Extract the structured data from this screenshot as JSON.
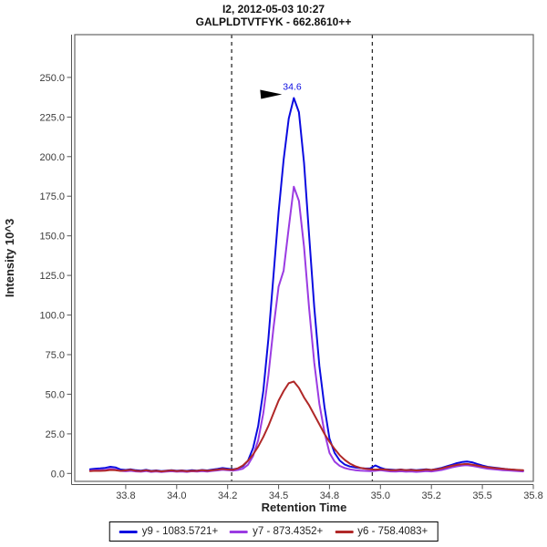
{
  "window": {
    "title_line1": "I2, 2012-05-03 10:27",
    "title_line2": "GALPLDTVTFYK - 662.8610++"
  },
  "chart_data": {
    "type": "line",
    "title": "I2, 2012-05-03 10:27",
    "subtitle": "GALPLDTVTFYK - 662.8610++",
    "xlabel": "Retention Time",
    "ylabel": "Intensity 10^3",
    "xlim": [
      33.5,
      35.75
    ],
    "ylim": [
      -5,
      277
    ],
    "grid": false,
    "legend_position": "bottom",
    "x_ticks": [
      {
        "value": 33.75,
        "label": "33.8"
      },
      {
        "value": 34.0,
        "label": "34.0"
      },
      {
        "value": 34.25,
        "label": "34.2"
      },
      {
        "value": 34.5,
        "label": "34.5"
      },
      {
        "value": 34.75,
        "label": "34.8"
      },
      {
        "value": 35.0,
        "label": "35.0"
      },
      {
        "value": 35.25,
        "label": "35.2"
      },
      {
        "value": 35.5,
        "label": "35.5"
      },
      {
        "value": 35.75,
        "label": "35.8"
      }
    ],
    "y_ticks": [
      {
        "value": 0,
        "label": "0.0"
      },
      {
        "value": 25,
        "label": "25.0"
      },
      {
        "value": 50,
        "label": "50.0"
      },
      {
        "value": 75,
        "label": "75.0"
      },
      {
        "value": 100,
        "label": "100.0"
      },
      {
        "value": 125,
        "label": "125.0"
      },
      {
        "value": 150,
        "label": "150.0"
      },
      {
        "value": 175,
        "label": "175.0"
      },
      {
        "value": 200,
        "label": "200.0"
      },
      {
        "value": 225,
        "label": "225.0"
      },
      {
        "value": 250,
        "label": "250.0"
      }
    ],
    "peak_boundaries": {
      "style": "dashed",
      "color": "#2a2a2a",
      "values": [
        34.27,
        34.96
      ]
    },
    "annotation": {
      "text": "34.6",
      "rt": 34.575,
      "intensity": 237,
      "color": "#0b0be0",
      "arrow": "black-right-arrow"
    },
    "x": [
      33.575,
      33.6,
      33.625,
      33.65,
      33.675,
      33.7,
      33.725,
      33.75,
      33.775,
      33.8,
      33.825,
      33.85,
      33.875,
      33.9,
      33.925,
      33.95,
      33.975,
      34.0,
      34.025,
      34.05,
      34.075,
      34.1,
      34.125,
      34.15,
      34.175,
      34.2,
      34.225,
      34.25,
      34.275,
      34.3,
      34.325,
      34.35,
      34.375,
      34.4,
      34.425,
      34.45,
      34.475,
      34.5,
      34.525,
      34.55,
      34.575,
      34.6,
      34.625,
      34.65,
      34.675,
      34.7,
      34.725,
      34.75,
      34.775,
      34.8,
      34.825,
      34.85,
      34.875,
      34.9,
      34.925,
      34.95,
      34.975,
      35.0,
      35.025,
      35.05,
      35.075,
      35.1,
      35.125,
      35.15,
      35.175,
      35.2,
      35.225,
      35.25,
      35.275,
      35.3,
      35.325,
      35.35,
      35.375,
      35.4,
      35.425,
      35.45,
      35.475,
      35.5,
      35.525,
      35.55,
      35.575,
      35.6,
      35.625,
      35.65,
      35.675,
      35.7
    ],
    "series": [
      {
        "id": "y9",
        "name": "y9 - 1083.5721+",
        "color": "#0b0be0",
        "peak_rt": 34.6,
        "peak_intensity": 237,
        "values": [
          2.6,
          3.0,
          3.2,
          3.5,
          4.2,
          3.8,
          2.5,
          2.2,
          2.6,
          2.0,
          1.8,
          2.3,
          1.6,
          1.9,
          1.5,
          1.8,
          2.1,
          1.7,
          1.9,
          1.6,
          2.0,
          1.8,
          2.2,
          1.9,
          2.4,
          2.8,
          3.4,
          3.0,
          2.6,
          3.2,
          4.5,
          8,
          16,
          30,
          52,
          85,
          125,
          165,
          198,
          224,
          237,
          228,
          196,
          150,
          105,
          68,
          42,
          22,
          13,
          8.2,
          5.6,
          4.4,
          3.8,
          3.4,
          3.1,
          3.2,
          5.0,
          3.6,
          2.6,
          2.4,
          2.2,
          2.5,
          2.1,
          2.4,
          2.0,
          2.3,
          2.6,
          2.2,
          2.8,
          3.5,
          4.5,
          5.5,
          6.5,
          7.2,
          7.5,
          7.0,
          6.0,
          5.0,
          4.2,
          3.8,
          3.4,
          3.0,
          2.6,
          2.4,
          2.0,
          1.8
        ]
      },
      {
        "id": "y7",
        "name": "y7 - 873.4352+",
        "color": "#9b3be2",
        "peak_intensity": 181,
        "values": [
          1.8,
          2.0,
          2.1,
          2.2,
          2.8,
          2.4,
          1.6,
          1.4,
          1.7,
          1.3,
          1.1,
          1.5,
          1.0,
          1.3,
          0.9,
          1.2,
          1.4,
          1.1,
          1.3,
          1.0,
          1.4,
          1.2,
          1.5,
          1.2,
          1.6,
          1.9,
          2.3,
          2.0,
          1.8,
          2.2,
          3.0,
          5.5,
          11,
          21,
          38,
          62,
          92,
          118,
          128,
          155,
          181,
          172,
          143,
          104,
          70,
          44,
          26,
          13,
          7.5,
          4.8,
          3.4,
          2.6,
          2.1,
          1.8,
          1.6,
          1.5,
          1.7,
          2.0,
          1.6,
          1.3,
          1.2,
          1.4,
          1.1,
          1.3,
          1.0,
          1.2,
          1.5,
          1.3,
          1.7,
          2.2,
          3.0,
          3.8,
          4.5,
          5.0,
          5.2,
          4.8,
          4.2,
          3.6,
          3.0,
          2.7,
          2.4,
          2.1,
          1.9,
          1.7,
          1.5,
          1.3
        ]
      },
      {
        "id": "y6",
        "name": "y6 - 758.4083+",
        "color": "#b02828",
        "peak_intensity": 58,
        "values": [
          1.5,
          1.7,
          1.6,
          1.8,
          2.2,
          2.0,
          1.6,
          1.9,
          2.3,
          1.7,
          1.5,
          2.0,
          1.4,
          1.7,
          1.3,
          1.6,
          1.9,
          1.5,
          1.8,
          1.4,
          1.7,
          1.6,
          2.0,
          1.7,
          2.1,
          2.4,
          2.8,
          2.5,
          2.3,
          3.2,
          5.0,
          8,
          12,
          17,
          23,
          30,
          38,
          46,
          52,
          57,
          58,
          54,
          48,
          43,
          37,
          31,
          25,
          20,
          15.5,
          11.5,
          8.5,
          6.2,
          4.6,
          3.6,
          3.0,
          2.6,
          2.4,
          2.6,
          2.4,
          2.1,
          2.0,
          2.3,
          2.0,
          2.2,
          1.9,
          2.1,
          2.4,
          2.2,
          2.6,
          3.2,
          4.0,
          4.8,
          5.4,
          5.8,
          6.0,
          5.6,
          5.0,
          4.4,
          3.9,
          3.5,
          3.2,
          2.9,
          2.6,
          2.4,
          2.2,
          2.0
        ]
      }
    ]
  }
}
